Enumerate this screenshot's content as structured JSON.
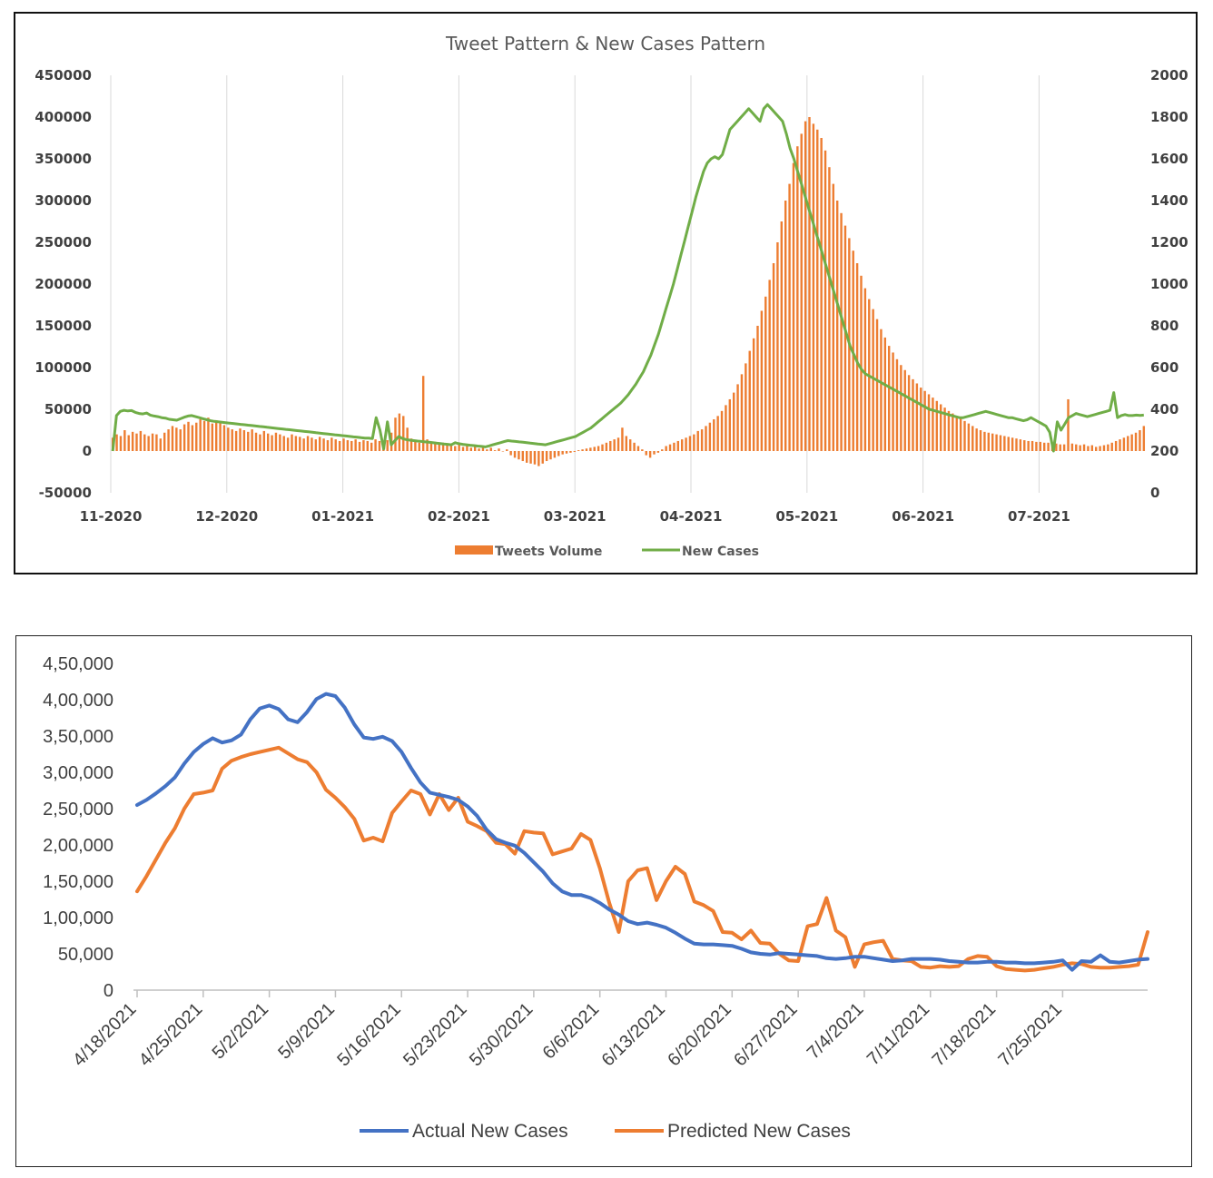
{
  "chart_data": [
    {
      "type": "bar+line",
      "title": "Tweet Pattern & New Cases Pattern",
      "x_ticks": [
        "11-2020",
        "12-2020",
        "01-2021",
        "02-2021",
        "03-2021",
        "04-2021",
        "05-2021",
        "06-2021",
        "07-2021"
      ],
      "y_left_ticks": [
        "450000",
        "400000",
        "350000",
        "300000",
        "250000",
        "200000",
        "150000",
        "100000",
        "50000",
        "0",
        "-50000"
      ],
      "y_right_ticks": [
        "2000",
        "1800",
        "1600",
        "1400",
        "1200",
        "1000",
        "800",
        "600",
        "400",
        "200",
        "0"
      ],
      "y_left_range": [
        -50000,
        450000
      ],
      "y_right_range": [
        0,
        2000
      ],
      "grid": "vertical",
      "legend_position": "bottom",
      "series": [
        {
          "name": "Tweets Volume",
          "axis": "left",
          "kind": "bar",
          "color": "#ED7D31",
          "x_start": "11-2020",
          "values": [
            16000,
            20000,
            18000,
            25000,
            19000,
            23000,
            21000,
            24000,
            20000,
            18000,
            21000,
            20000,
            15000,
            22000,
            26000,
            30000,
            28000,
            26000,
            32000,
            35000,
            31000,
            34000,
            38000,
            36000,
            40000,
            33000,
            37000,
            35000,
            31000,
            28000,
            26000,
            24000,
            27000,
            25000,
            23000,
            26000,
            22000,
            20000,
            24000,
            21000,
            19000,
            22000,
            20000,
            18000,
            16000,
            20000,
            18000,
            17000,
            15000,
            18000,
            16000,
            14000,
            17000,
            15000,
            13000,
            16000,
            14000,
            12000,
            15000,
            13000,
            12000,
            14000,
            11000,
            13000,
            12000,
            10000,
            14000,
            12000,
            11000,
            13000,
            22000,
            40000,
            45000,
            42000,
            28000,
            15000,
            12000,
            10000,
            90000,
            14000,
            9000,
            11000,
            8000,
            10000,
            7000,
            9000,
            6000,
            8000,
            5000,
            7000,
            4000,
            6000,
            3000,
            5000,
            2000,
            4000,
            1000,
            3000,
            0,
            2000,
            -5000,
            -8000,
            -10000,
            -12000,
            -14000,
            -15000,
            -16000,
            -18000,
            -15000,
            -12000,
            -10000,
            -8000,
            -6000,
            -4000,
            -3000,
            -2000,
            -1000,
            1000,
            2000,
            3000,
            4000,
            5000,
            6000,
            8000,
            10000,
            12000,
            14000,
            16000,
            28000,
            18000,
            14000,
            10000,
            6000,
            2000,
            -5000,
            -8000,
            -4000,
            -2000,
            2000,
            6000,
            8000,
            10000,
            12000,
            14000,
            16000,
            18000,
            20000,
            24000,
            26000,
            30000,
            34000,
            38000,
            42000,
            48000,
            55000,
            62000,
            70000,
            80000,
            92000,
            105000,
            120000,
            135000,
            150000,
            168000,
            185000,
            205000,
            225000,
            250000,
            275000,
            300000,
            320000,
            345000,
            365000,
            380000,
            395000,
            400000,
            392000,
            385000,
            375000,
            360000,
            340000,
            320000,
            300000,
            285000,
            270000,
            255000,
            240000,
            225000,
            210000,
            195000,
            182000,
            170000,
            158000,
            146000,
            136000,
            126000,
            118000,
            110000,
            103000,
            97000,
            91000,
            86000,
            81000,
            76000,
            72000,
            68000,
            64000,
            60000,
            56000,
            52000,
            48000,
            45000,
            42000,
            39000,
            36000,
            33000,
            30000,
            27000,
            25000,
            23000,
            22000,
            21000,
            20000,
            19000,
            18000,
            17000,
            16000,
            15000,
            14000,
            13000,
            12000,
            12000,
            11000,
            11000,
            10000,
            10000,
            9000,
            9000,
            8000,
            8000,
            62000,
            9000,
            8000,
            7000,
            8000,
            6000,
            7000,
            5000,
            6000,
            7000,
            8000,
            10000,
            12000,
            14000,
            16000,
            18000,
            20000,
            22000,
            25000,
            30000
          ]
        },
        {
          "name": "New Cases",
          "axis": "right",
          "kind": "line",
          "color": "#70AD47",
          "x_start": "11-2020",
          "values": [
            200,
            370,
            390,
            395,
            392,
            394,
            385,
            380,
            378,
            382,
            372,
            368,
            365,
            360,
            358,
            352,
            350,
            348,
            355,
            362,
            368,
            370,
            365,
            360,
            355,
            350,
            345,
            342,
            340,
            338,
            336,
            334,
            332,
            330,
            328,
            326,
            324,
            322,
            320,
            318,
            316,
            314,
            312,
            310,
            308,
            306,
            304,
            302,
            300,
            298,
            296,
            294,
            292,
            290,
            288,
            286,
            284,
            282,
            280,
            278,
            276,
            274,
            272,
            270,
            268,
            266,
            264,
            262,
            262,
            260,
            360,
            300,
            210,
            340,
            230,
            250,
            270,
            260,
            255,
            252,
            250,
            248,
            246,
            244,
            242,
            240,
            238,
            236,
            234,
            232,
            230,
            240,
            235,
            232,
            230,
            228,
            226,
            224,
            222,
            220,
            225,
            230,
            235,
            240,
            245,
            250,
            248,
            246,
            244,
            242,
            240,
            238,
            236,
            234,
            232,
            230,
            235,
            240,
            245,
            250,
            255,
            260,
            265,
            270,
            280,
            290,
            300,
            310,
            325,
            340,
            355,
            370,
            385,
            400,
            415,
            430,
            450,
            470,
            495,
            520,
            550,
            580,
            620,
            660,
            710,
            760,
            820,
            880,
            940,
            1000,
            1070,
            1140,
            1210,
            1280,
            1350,
            1420,
            1480,
            1540,
            1580,
            1600,
            1610,
            1600,
            1620,
            1680,
            1740,
            1760,
            1780,
            1800,
            1820,
            1840,
            1820,
            1800,
            1780,
            1840,
            1860,
            1840,
            1820,
            1800,
            1780,
            1720,
            1650,
            1600,
            1540,
            1480,
            1420,
            1360,
            1300,
            1240,
            1180,
            1120,
            1060,
            1000,
            940,
            880,
            820,
            760,
            700,
            660,
            620,
            590,
            570,
            560,
            550,
            540,
            530,
            520,
            510,
            500,
            490,
            480,
            470,
            460,
            450,
            440,
            430,
            420,
            410,
            400,
            395,
            390,
            385,
            380,
            375,
            370,
            365,
            360,
            360,
            365,
            370,
            375,
            380,
            385,
            390,
            385,
            380,
            375,
            370,
            365,
            360,
            360,
            355,
            350,
            345,
            350,
            360,
            350,
            340,
            330,
            320,
            290,
            200,
            340,
            300,
            330,
            360,
            370,
            380,
            375,
            370,
            365,
            370,
            375,
            380,
            385,
            390,
            395,
            480,
            360,
            370,
            375,
            370,
            370,
            372,
            371,
            372
          ]
        }
      ]
    },
    {
      "type": "line",
      "x_ticks": [
        "4/18/2021",
        "4/25/2021",
        "5/2/2021",
        "5/9/2021",
        "5/16/2021",
        "5/23/2021",
        "5/30/2021",
        "6/6/2021",
        "6/13/2021",
        "6/20/2021",
        "6/27/2021",
        "7/4/2021",
        "7/11/2021",
        "7/18/2021",
        "7/25/2021"
      ],
      "x_start": "4/18/2021",
      "y_ticks": [
        "4,50,000",
        "4,00,000",
        "3,50,000",
        "3,00,000",
        "2,50,000",
        "2,00,000",
        "1,50,000",
        "1,00,000",
        "50,000",
        "0"
      ],
      "ylim": [
        0,
        450000
      ],
      "legend_position": "bottom",
      "series": [
        {
          "name": "Actual New Cases",
          "color": "#4472C4",
          "values": [
            255000,
            262000,
            271000,
            281000,
            293000,
            312000,
            328000,
            339000,
            347000,
            341000,
            344000,
            352000,
            373000,
            388000,
            392000,
            387000,
            373000,
            369000,
            383000,
            401000,
            408000,
            405000,
            389000,
            366000,
            348000,
            346000,
            349000,
            343000,
            328000,
            306000,
            286000,
            272000,
            269000,
            266000,
            262000,
            253000,
            240000,
            221000,
            208000,
            203000,
            199000,
            189000,
            176000,
            163000,
            147000,
            136000,
            131000,
            131000,
            127000,
            120000,
            111000,
            104000,
            95000,
            91000,
            93000,
            90000,
            86000,
            79000,
            71000,
            64000,
            63000,
            63000,
            62000,
            61000,
            57000,
            52000,
            50000,
            49000,
            51000,
            50000,
            49000,
            48000,
            47000,
            44000,
            43000,
            44000,
            46000,
            46000,
            44000,
            42000,
            40000,
            41000,
            43000,
            43000,
            43000,
            42000,
            40000,
            39000,
            38000,
            38000,
            39000,
            39000,
            38000,
            38000,
            37000,
            37000,
            38000,
            39000,
            41000,
            28000,
            40000,
            39000,
            48000,
            39000,
            38000,
            40000,
            42000,
            43000
          ]
        },
        {
          "name": "Predicted New Cases",
          "color": "#ED7D31",
          "values": [
            136000,
            157000,
            180000,
            203000,
            223000,
            250000,
            270000,
            272000,
            275000,
            305000,
            316000,
            321000,
            325000,
            328000,
            331000,
            334000,
            326000,
            318000,
            314000,
            300000,
            276000,
            265000,
            252000,
            236000,
            206000,
            210000,
            205000,
            244000,
            260000,
            275000,
            270000,
            242000,
            270000,
            248000,
            265000,
            232000,
            226000,
            219000,
            203000,
            201000,
            188000,
            219000,
            217000,
            216000,
            187000,
            191000,
            195000,
            215000,
            207000,
            168000,
            120000,
            80000,
            150000,
            165000,
            168000,
            124000,
            150000,
            170000,
            160000,
            122000,
            117000,
            109000,
            80000,
            79000,
            70000,
            82000,
            65000,
            64000,
            50000,
            41000,
            40000,
            88000,
            91000,
            127000,
            82000,
            73000,
            32000,
            63000,
            66000,
            68000,
            43000,
            41000,
            40000,
            32000,
            31000,
            33000,
            32000,
            33000,
            43000,
            47000,
            46000,
            33000,
            29000,
            28000,
            27000,
            28000,
            30000,
            32000,
            35000,
            37000,
            36000,
            32000,
            31000,
            31000,
            32000,
            33000,
            35000,
            80000
          ]
        }
      ]
    }
  ]
}
